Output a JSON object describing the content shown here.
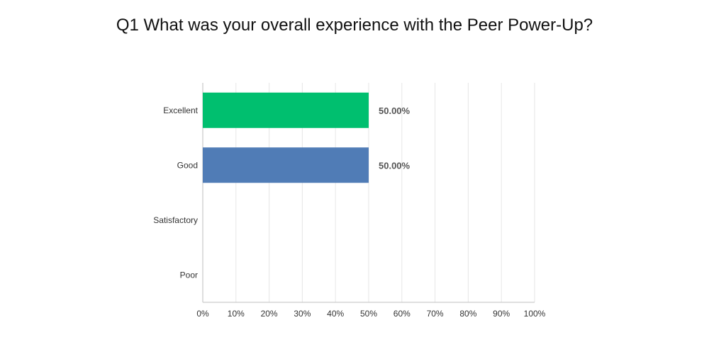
{
  "title": "Q1 What was your overall experience with the Peer Power-Up?",
  "chart_data": {
    "type": "bar",
    "orientation": "horizontal",
    "title": "Q1 What was your overall experience with the Peer Power-Up?",
    "categories": [
      "Excellent",
      "Good",
      "Satisfactory",
      "Poor"
    ],
    "values": [
      50,
      50,
      0,
      0
    ],
    "value_labels": [
      "50.00%",
      "50.00%",
      "",
      ""
    ],
    "bar_colors": [
      "#00bf6f",
      "#507cb6",
      "#507cb6",
      "#507cb6"
    ],
    "xlim": [
      0,
      100
    ],
    "xticks": [
      0,
      10,
      20,
      30,
      40,
      50,
      60,
      70,
      80,
      90,
      100
    ],
    "xtick_labels": [
      "0%",
      "10%",
      "20%",
      "30%",
      "40%",
      "50%",
      "60%",
      "70%",
      "80%",
      "90%",
      "100%"
    ],
    "xlabel": "",
    "ylabel": "",
    "grid": true
  }
}
